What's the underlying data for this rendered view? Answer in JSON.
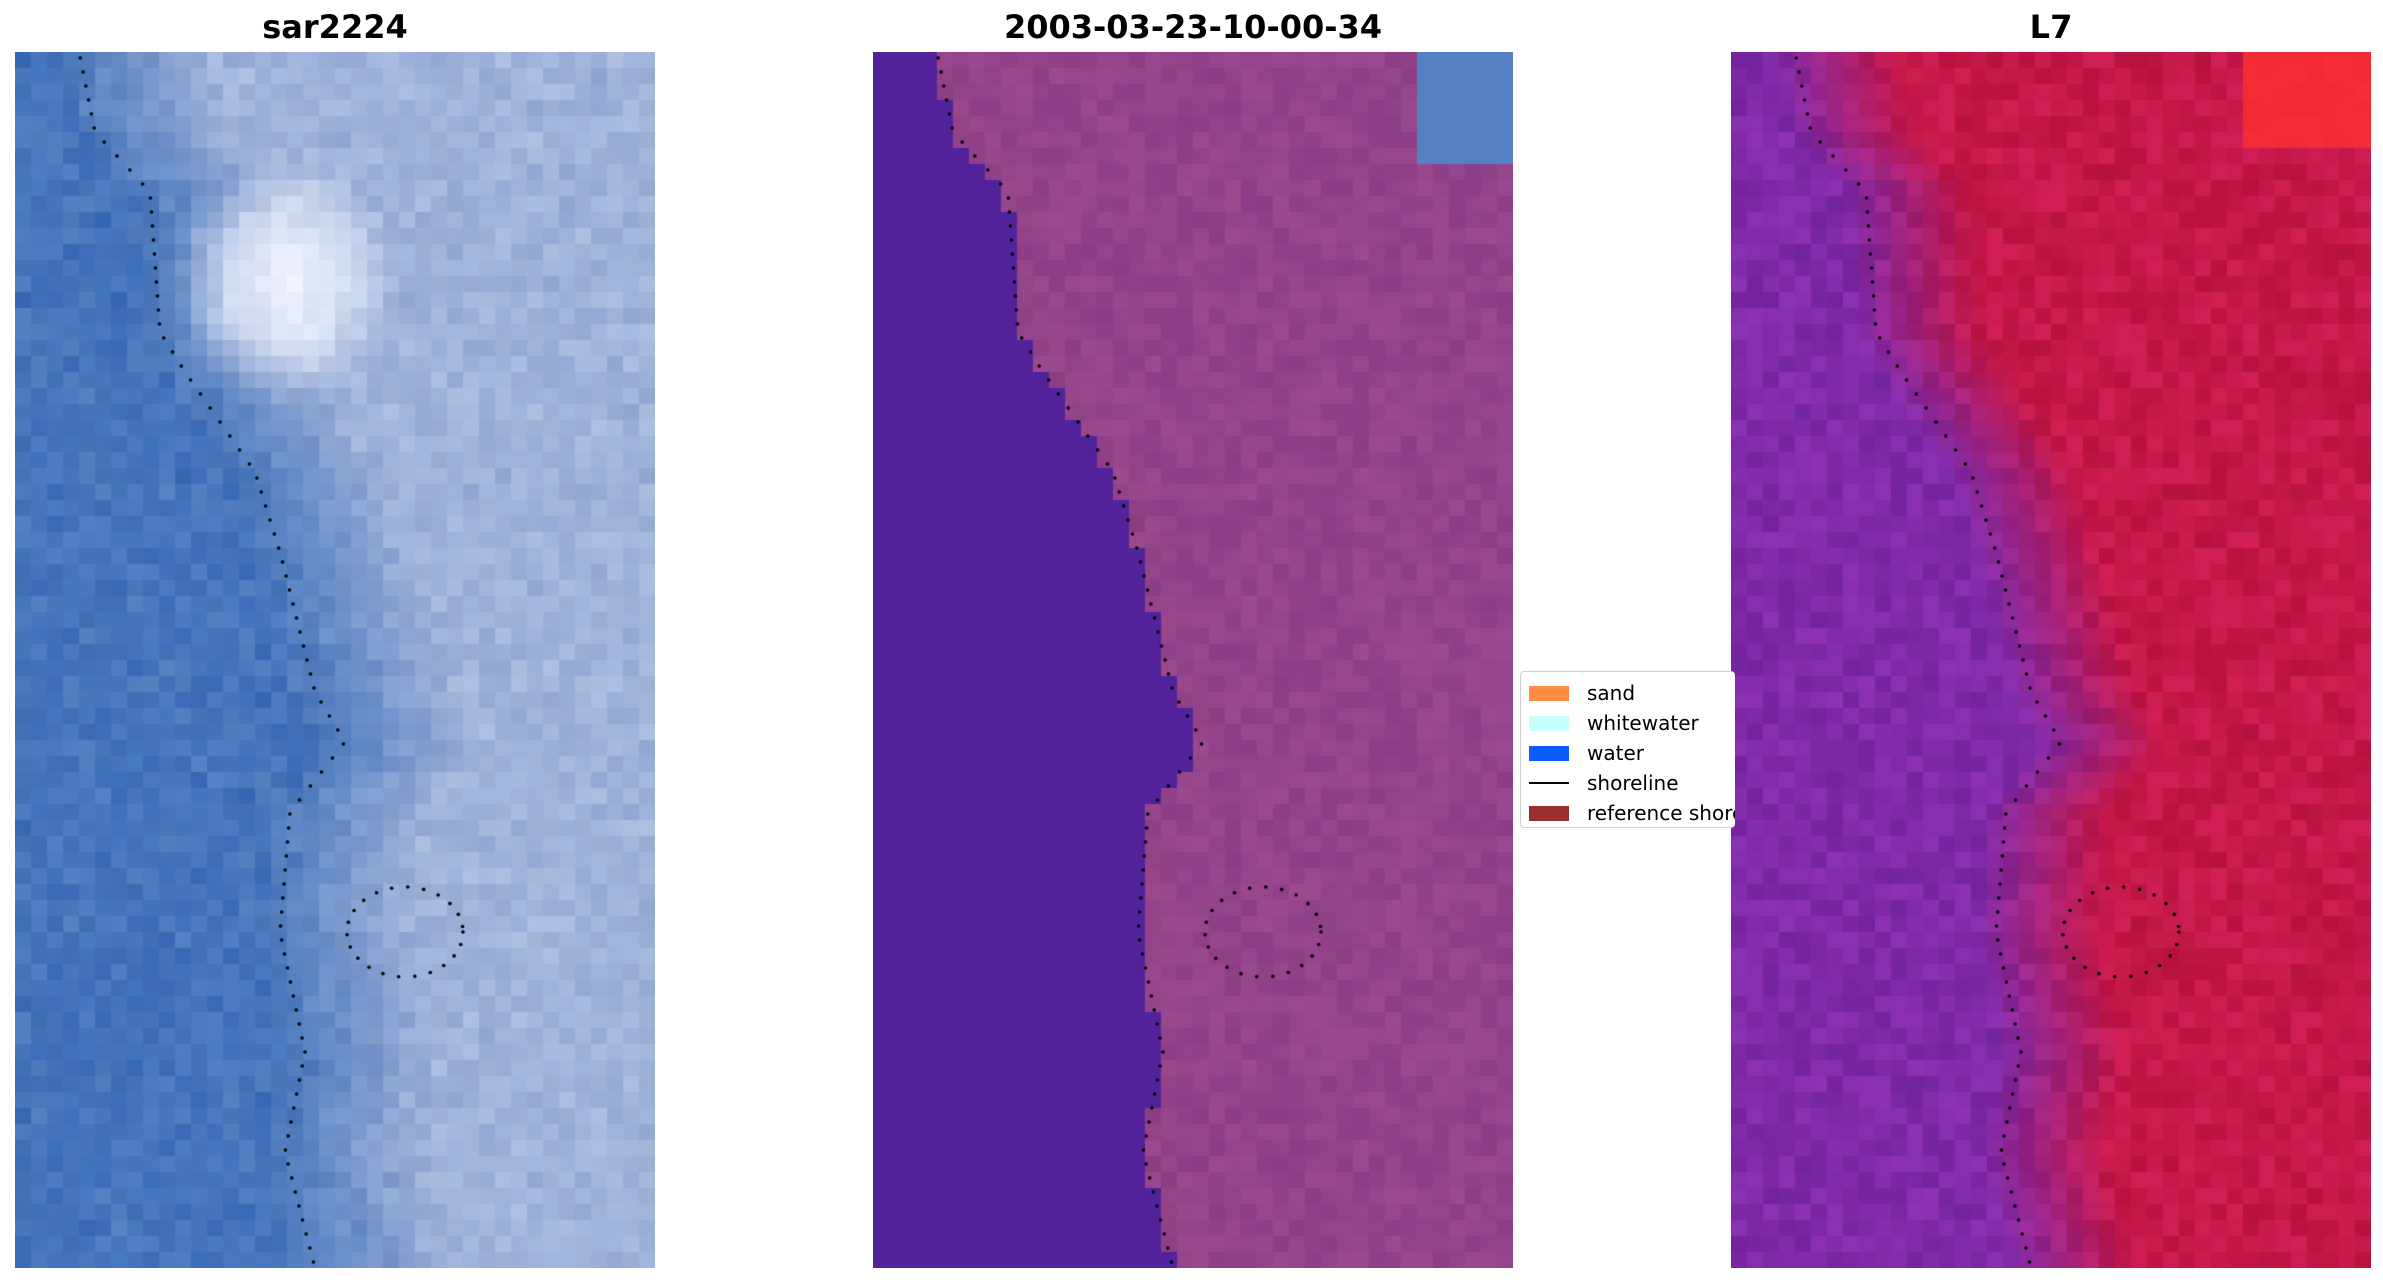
{
  "panels": [
    {
      "title": "sar2224",
      "palette": "rgb"
    },
    {
      "title": "2003-03-23-10-00-34",
      "palette": "classified"
    },
    {
      "title": "L7",
      "palette": "nir"
    }
  ],
  "legend": {
    "items": [
      {
        "label": "sand",
        "color": "#ff8c42",
        "kind": "patch"
      },
      {
        "label": "whitewater",
        "color": "#c8ffff",
        "kind": "patch"
      },
      {
        "label": "water",
        "color": "#0a5cff",
        "kind": "patch"
      },
      {
        "label": "shoreline",
        "color": "#000000",
        "kind": "line"
      },
      {
        "label": "reference shoreline",
        "color": "#9b2f2f",
        "kind": "patch"
      }
    ]
  },
  "colors": {
    "ocean_blue": "#3e6fb8",
    "land_light": "#a7b8dc",
    "cloud_white": "#f2f4ff",
    "classified_water": "#52229a",
    "classified_land": "#8b3d86",
    "nir_water": "#7f2aa8",
    "nir_land": "#c4184a",
    "nir_hot": "#ff3030",
    "shoreline_dots": "#000000"
  }
}
